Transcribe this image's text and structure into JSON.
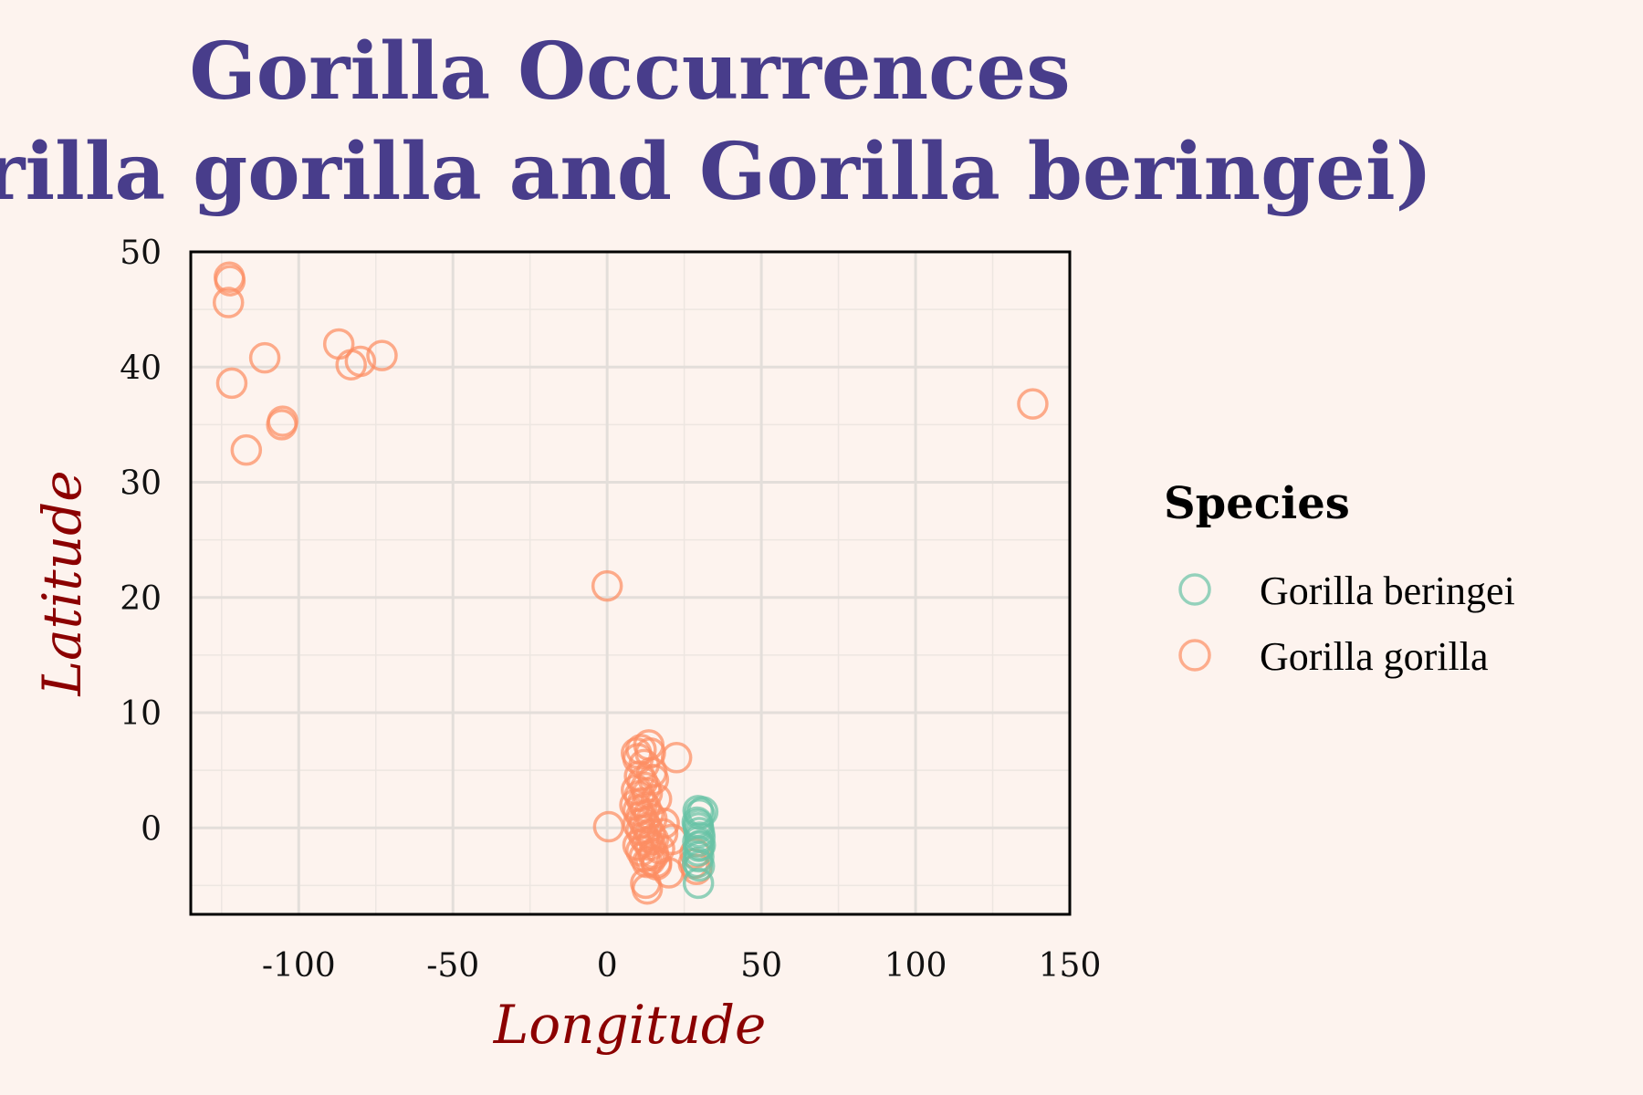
{
  "chart_data": {
    "type": "scatter",
    "title_lines": [
      "Gorilla Occurrences",
      "(Gorilla gorilla and Gorilla beringei)"
    ],
    "xlabel": "Longitude",
    "ylabel": "Latitude",
    "xlim": [
      -135,
      150
    ],
    "ylim": [
      -7.5,
      50
    ],
    "xticks": [
      -100,
      -50,
      0,
      50,
      100,
      150
    ],
    "yticks": [
      0,
      10,
      20,
      30,
      40,
      50
    ],
    "grid": true,
    "legend": {
      "title": "Species",
      "position": "right"
    },
    "series": [
      {
        "name": "Gorilla beringei",
        "color": "#66c2a5",
        "marker": "open-circle",
        "x": [
          29.5,
          30,
          31,
          29.2,
          29.6,
          29.9,
          30.1,
          29.4,
          29.8,
          29.5,
          30.2,
          29.7,
          29.3,
          29.9,
          29.6,
          29.5
        ],
        "y": [
          1.5,
          1.2,
          1.4,
          0.5,
          0,
          -0.4,
          -0.8,
          -1.2,
          -1.6,
          -2,
          -1.5,
          -2.5,
          -3,
          -3.3,
          -4.8,
          0.3
        ]
      },
      {
        "name": "Gorilla gorilla",
        "color": "#fc8d62",
        "marker": "open-circle",
        "x": [
          -122.5,
          -122.3,
          -122.8,
          -121.7,
          -111,
          -105.2,
          -105.5,
          -117,
          -87,
          -83,
          -80,
          -73,
          138,
          0,
          0.5,
          9.5,
          10,
          11,
          12,
          13.5,
          14,
          22.5,
          10.5,
          11.5,
          12.5,
          13,
          14.5,
          15,
          16,
          9,
          10,
          11,
          12,
          13,
          14,
          15,
          9.5,
          10.5,
          11.5,
          12.5,
          13.5,
          14.5,
          10,
          11,
          12,
          13,
          14,
          15,
          16,
          17,
          18,
          10,
          11,
          12,
          13,
          14,
          15,
          16,
          12.5,
          13,
          20,
          28.5,
          29,
          28,
          18.5,
          21
        ],
        "y": [
          47.8,
          47.5,
          45.6,
          38.6,
          40.8,
          35.3,
          35,
          32.8,
          42,
          40.2,
          40.5,
          41,
          36.8,
          21,
          0.1,
          6.5,
          6,
          6.8,
          5.5,
          7.2,
          6.5,
          6.1,
          4.5,
          4,
          3.5,
          3,
          4.8,
          4.2,
          2.5,
          2,
          1.5,
          1,
          0.5,
          0,
          -0.5,
          -1,
          3.3,
          2.8,
          2.2,
          1.8,
          1.2,
          0.8,
          -1.5,
          -2,
          -2.5,
          -3,
          -2.8,
          -2.2,
          -3.2,
          -1.8,
          -0.5,
          0.3,
          -0.2,
          -0.8,
          -1.2,
          -1.5,
          -2.4,
          -3,
          -4.8,
          -5.3,
          -3.9,
          -2.2,
          -3.6,
          -3.1,
          0.4,
          -1
        ]
      }
    ]
  }
}
